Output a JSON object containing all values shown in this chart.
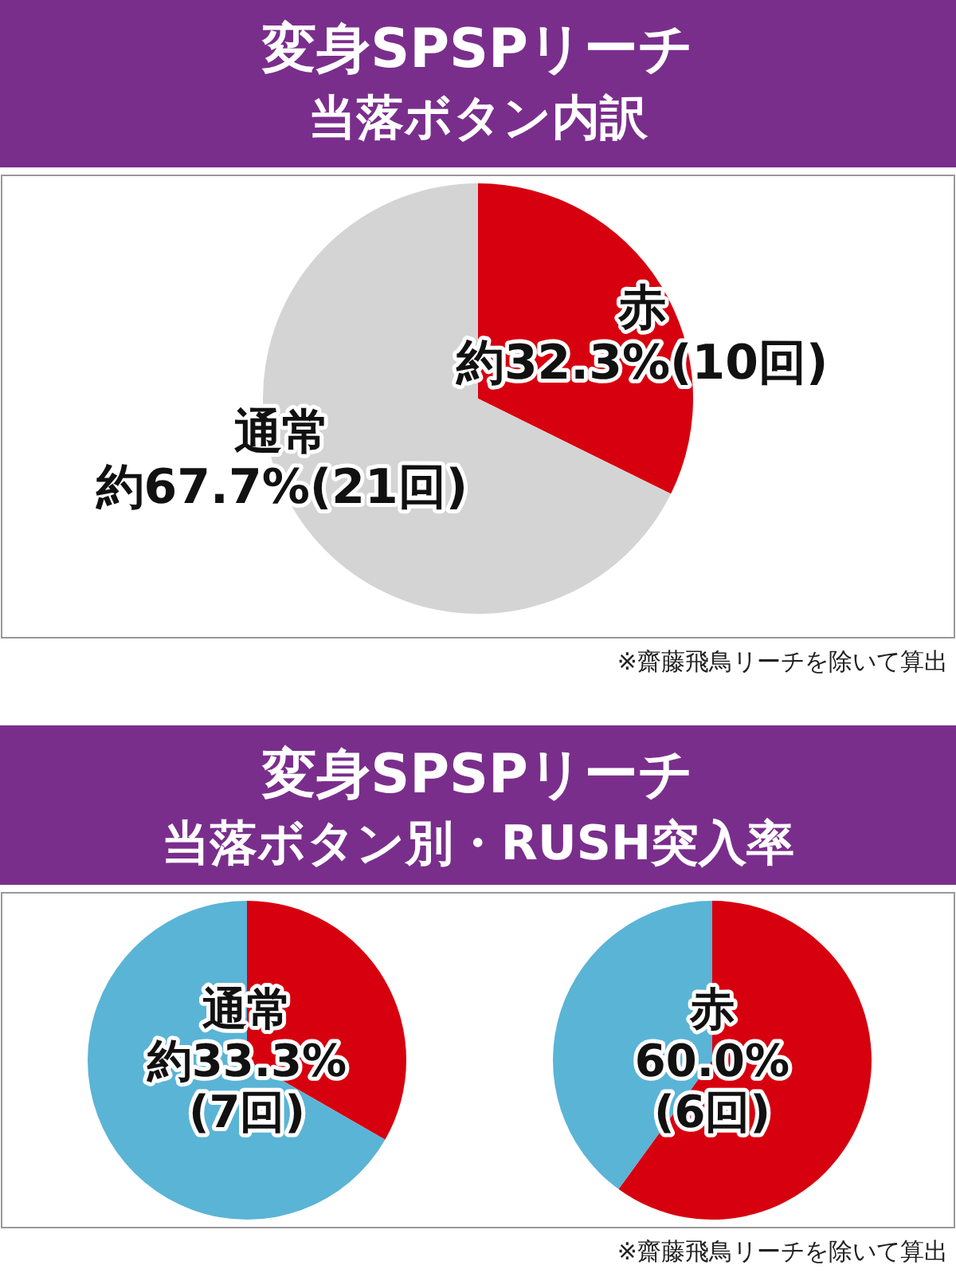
{
  "chart_data": [
    {
      "type": "pie",
      "title": "変身SPSPリーチ",
      "subtitle": "当落ボタン内訳",
      "categories": [
        "赤",
        "通常"
      ],
      "values": [
        32.3,
        67.7
      ],
      "colors": [
        "#d7000f",
        "#d4d4d4"
      ],
      "value_labels": [
        "約32.3%(10回)",
        "約67.7%(21回)"
      ],
      "annotations": [
        "※齋藤飛鳥リーチを除いて算出"
      ]
    },
    {
      "type": "pie",
      "title": "変身SPSPリーチ",
      "subtitle": "当落ボタン別・RUSH突入率",
      "categories": [
        "通常",
        null
      ],
      "values": [
        33.3,
        66.7
      ],
      "colors": [
        "#d7000f",
        "#5ab4d6"
      ],
      "value_labels": [
        "約33.3%\n(7回)",
        null
      ]
    },
    {
      "type": "pie",
      "categories": [
        "赤",
        null
      ],
      "values": [
        60.0,
        40.0
      ],
      "colors": [
        "#d7000f",
        "#5ab4d6"
      ],
      "value_labels": [
        "60.0%\n(6回)",
        null
      ],
      "annotations": [
        "※齋藤飛鳥リーチを除いて算出"
      ]
    }
  ]
}
